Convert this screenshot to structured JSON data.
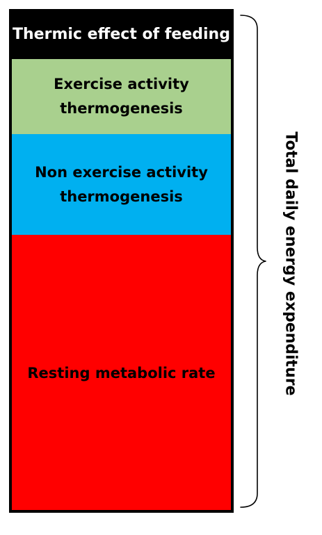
{
  "diagram": {
    "components": [
      {
        "label_line1": "Thermic effect of feeding",
        "label_line2": "",
        "color": "#000000",
        "text_color": "#ffffff"
      },
      {
        "label_line1": "Exercise activity",
        "label_line2": "thermogenesis",
        "color": "#a9d08e",
        "text_color": "#000000"
      },
      {
        "label_line1": "Non exercise activity",
        "label_line2": "thermogenesis",
        "color": "#00b0f0",
        "text_color": "#000000"
      },
      {
        "label_line1": "Resting metabolic rate",
        "label_line2": "",
        "color": "#ff0000",
        "text_color": "#000000"
      }
    ],
    "total_label": "Total daily energy expenditure",
    "brace_color": "#000000",
    "border_color": "#000000"
  }
}
